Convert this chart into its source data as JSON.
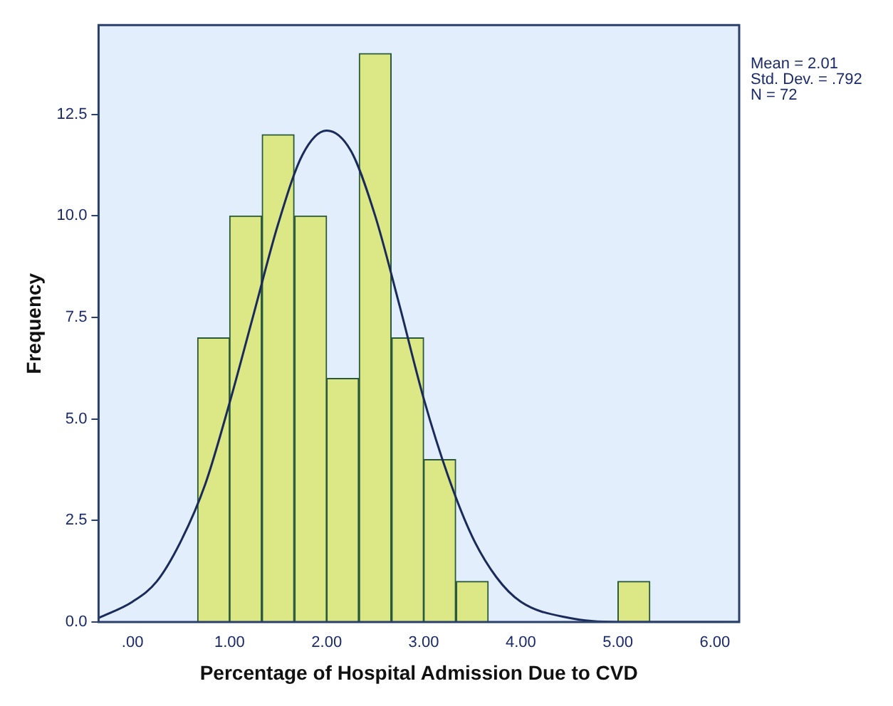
{
  "chart_data": {
    "type": "histogram",
    "xlabel": "Percentage of Hospital Admission Due to CVD",
    "ylabel": "Frequency",
    "bins": [
      0.67,
      1.0,
      1.33,
      1.67,
      2.0,
      2.33,
      2.67,
      3.0,
      3.33,
      3.67,
      4.0,
      4.33,
      4.67,
      5.0,
      5.33
    ],
    "values": [
      7,
      10,
      12,
      10,
      6,
      14,
      7,
      4,
      1,
      0,
      0,
      0,
      0,
      1
    ],
    "color": "#dce785",
    "series": [
      {
        "type": "line",
        "color": "#1a2a5a",
        "x": [
          -0.35,
          0,
          0.25,
          0.5,
          0.75,
          1.0,
          1.25,
          1.5,
          1.75,
          2.0,
          2.25,
          2.5,
          2.75,
          3.0,
          3.25,
          3.5,
          3.75,
          4.0,
          4.5,
          5.0,
          5.5,
          6.25
        ],
        "values": [
          0.1,
          0.5,
          1.0,
          2.0,
          3.4,
          5.4,
          7.6,
          9.8,
          11.5,
          12.1,
          11.6,
          10.0,
          7.8,
          5.5,
          3.6,
          2.1,
          1.1,
          0.5,
          0.1,
          0,
          0,
          0
        ]
      }
    ],
    "xlim": [
      -0.35,
      6.25
    ],
    "xticks": [
      {
        "value": 0,
        "label": ".00"
      },
      {
        "value": 1,
        "label": "1.00"
      },
      {
        "value": 2,
        "label": "2.00"
      },
      {
        "value": 3,
        "label": "3.00"
      },
      {
        "value": 4,
        "label": "4.00"
      },
      {
        "value": 5,
        "label": "5.00"
      },
      {
        "value": 6,
        "label": "6.00"
      }
    ],
    "ylim": [
      0,
      14.7
    ],
    "yticks": [
      {
        "value": 0,
        "label": "0.0"
      },
      {
        "value": 2.5,
        "label": "2.5"
      },
      {
        "value": 5,
        "label": "5.0"
      },
      {
        "value": 7.5,
        "label": "7.5"
      },
      {
        "value": 10,
        "label": "10.0"
      },
      {
        "value": 12.5,
        "label": "12.5"
      }
    ],
    "annotations": [
      "Mean = 2.01",
      "Std. Dev. = .792",
      "N = 72"
    ],
    "grid": false,
    "legend": false
  }
}
